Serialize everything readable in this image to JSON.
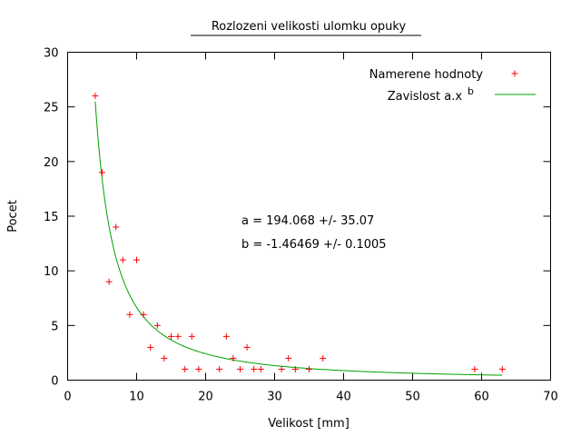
{
  "chart_data": {
    "type": "scatter",
    "title": "Rozlozeni velikosti ulomku opuky",
    "xlabel": "Velikost [mm]",
    "ylabel": "Pocet",
    "xlim": [
      0,
      70
    ],
    "ylim": [
      0,
      30
    ],
    "xticks": [
      0,
      10,
      20,
      30,
      40,
      50,
      60,
      70
    ],
    "yticks": [
      0,
      5,
      10,
      15,
      20,
      25,
      30
    ],
    "grid": false,
    "legend_position": "top-right",
    "series": [
      {
        "name": "Namerene hodnoty",
        "kind": "points",
        "color": "#ff0000",
        "marker": "plus",
        "x": [
          4,
          5,
          6,
          7,
          8,
          9,
          10,
          11,
          12,
          13,
          14,
          15,
          16,
          17,
          18,
          19,
          22,
          23,
          24,
          25,
          26,
          27,
          28,
          31,
          32,
          33,
          35,
          37,
          59,
          63
        ],
        "y": [
          26,
          19,
          9,
          14,
          11,
          6,
          11,
          6,
          3,
          5,
          2,
          4,
          4,
          1,
          4,
          1,
          1,
          4,
          2,
          1,
          3,
          1,
          1,
          1,
          2,
          1,
          1,
          2,
          1,
          1
        ]
      },
      {
        "name_prefix": "Zavislost a.x",
        "name_superscript": "b",
        "kind": "fit",
        "color": "#00a000",
        "function": "a*x^b",
        "a": 194.068,
        "b": -1.46469,
        "x_range": [
          4,
          63
        ]
      }
    ],
    "annotations": [
      "a = 194.068 +/- 35.07",
      "b = -1.46469 +/- 0.1005"
    ]
  }
}
